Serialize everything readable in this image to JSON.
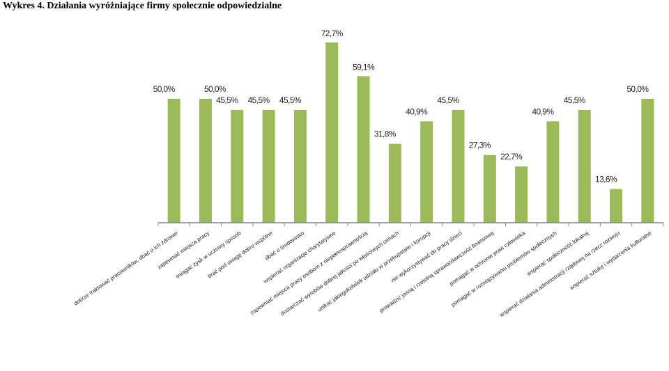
{
  "title": "Wykres 4. Działania wyróżniające firmy społecznie odpowiedzialne",
  "chart_data": {
    "type": "bar",
    "title": "",
    "xlabel": "",
    "ylabel": "",
    "ylim": [
      0,
      80
    ],
    "grid": false,
    "bar_color": "#9bbb59",
    "axis_color": "#868686",
    "categories": [
      "dobrze traktować pracowników, dbać o ich zdrowie",
      "zapewniać miejsca pracy",
      "osiągać zysk w uczciwy sposób",
      "brać pod uwagę dobro wspólne",
      "dbać o środowisko",
      "wspierać organizacje charytatywne",
      "zapewniać miejsca pracy osobom z niepełnosprawnością",
      "dostarczać wyrobów dobrej jakości po właściwych cenach",
      "unikać jakiegokolwiek udziału w przekupstwie i korupcji",
      "nie wykorzystywać do pracy dzieci",
      "prowadzić jasną i rzetelną sprawozdawczość finansową",
      "pomagać w ochronie praw człowieka",
      "pomagać w rozwiązywaniu problemów społecznych",
      "wspierać społeczność lokalną",
      "wspierać działania administracji rządowej na rzecz rozwoju",
      "wspierać sztukę i wydarzenia kulturalne"
    ],
    "values": [
      50.0,
      50.0,
      45.5,
      45.5,
      45.5,
      72.7,
      59.1,
      31.8,
      40.9,
      45.5,
      27.3,
      22.7,
      40.9,
      45.5,
      13.6,
      50.0
    ],
    "value_labels": [
      "50,0%",
      "50,0%",
      "45,5%",
      "45,5%",
      "45,5%",
      "72,7%",
      "59,1%",
      "31,8%",
      "40,9%",
      "45,5%",
      "27,3%",
      "22,7%",
      "40,9%",
      "45,5%",
      "13,6%",
      "50,0%"
    ],
    "label_positions": [
      "left",
      "right",
      "left",
      "left",
      "left",
      "above",
      "above",
      "left",
      "left",
      "left",
      "left",
      "left",
      "left",
      "left",
      "left",
      "left"
    ]
  }
}
